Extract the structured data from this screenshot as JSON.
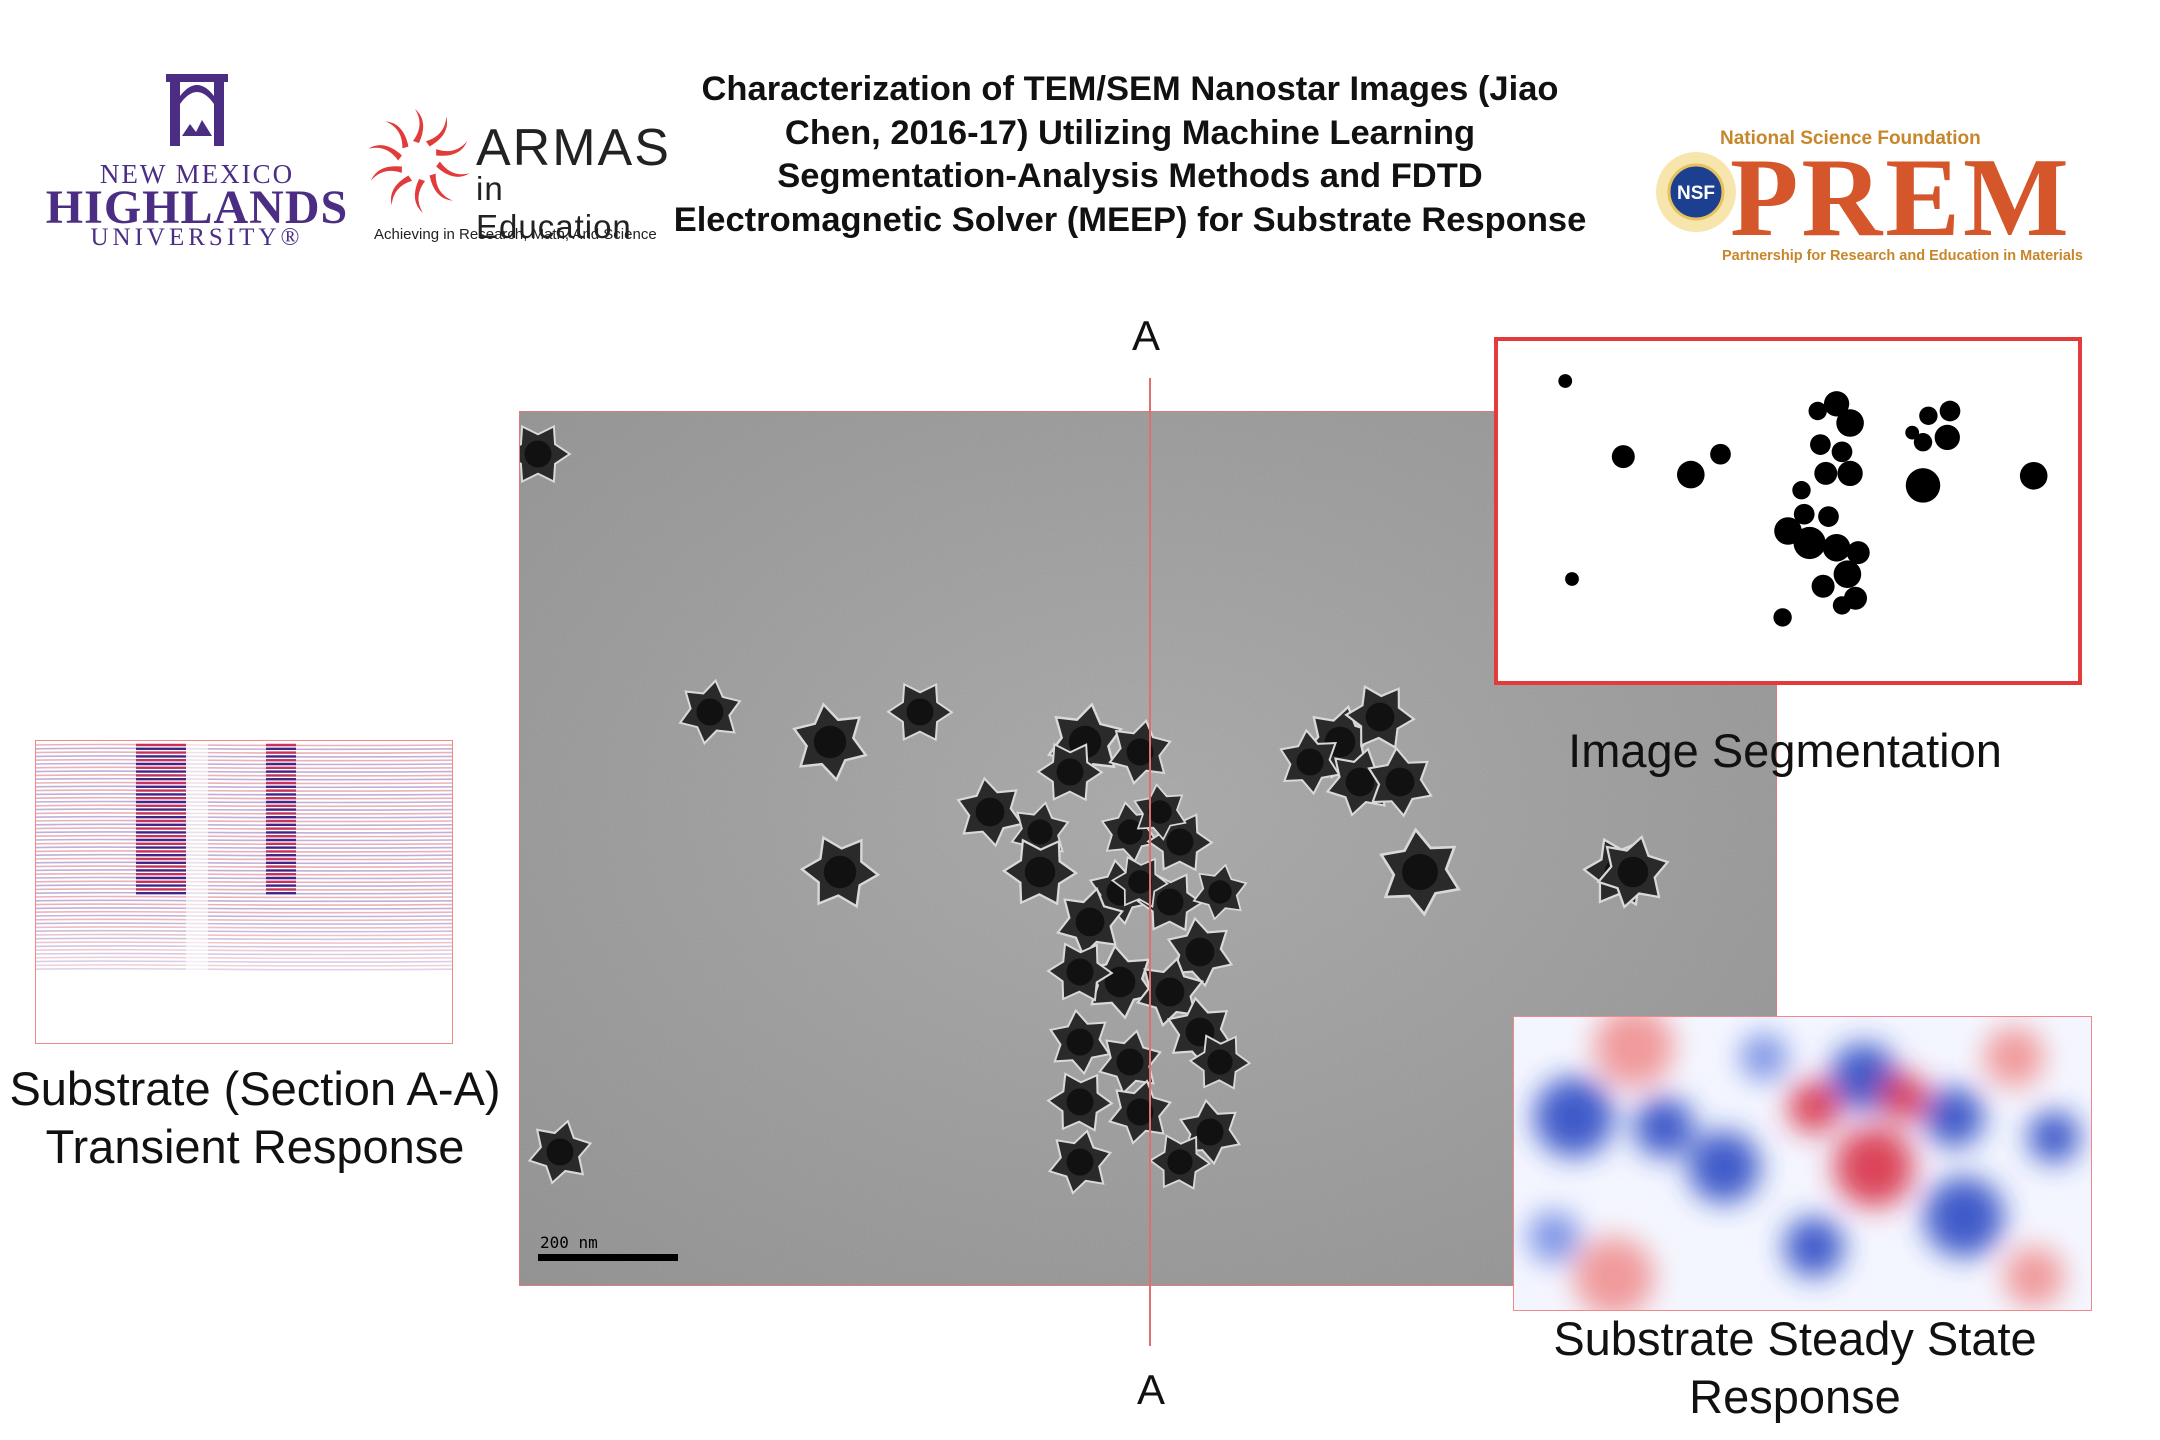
{
  "header": {
    "title": "Characterization of TEM/SEM Nanostar Images (Jiao Chen, 2016-17) Utilizing Machine Learning Segmentation-Analysis Methods and FDTD Electromagnetic Solver (MEEP)  for Substrate Response",
    "logos": {
      "nmhu": {
        "line1": "NEW MEXICO",
        "line2": "HIGHLANDS",
        "line3": "UNIVERSITY®",
        "color": "#4b2e83"
      },
      "armas": {
        "word": "ARMAS",
        "sub": "in Education",
        "tagline": "Achieving in Research, Math, And Science",
        "accent": "#e23b3b"
      },
      "prem": {
        "top": "National Science Foundation",
        "word": "PREM",
        "sub": "Partnership for Research and Education in Materials",
        "seal": "NSF",
        "color": "#d4562a",
        "gold": "#c8862a"
      }
    }
  },
  "section_markers": {
    "top": "A",
    "bottom": "A"
  },
  "panels": {
    "tem": {
      "scale_label": "200 nm",
      "name": "tem-micrograph"
    },
    "segmentation": {
      "caption": "Image Segmentation"
    },
    "transient": {
      "caption_l1": "Substrate (Section A-A)",
      "caption_l2": "Transient Response"
    },
    "steady": {
      "caption_l1": "Substrate Steady State",
      "caption_l2": "Response"
    }
  },
  "colors": {
    "field_positive": "#d7263d",
    "field_negative": "#1f3fbf",
    "tem_background": "#9c9c9c",
    "border_red": "#e33a3a"
  }
}
